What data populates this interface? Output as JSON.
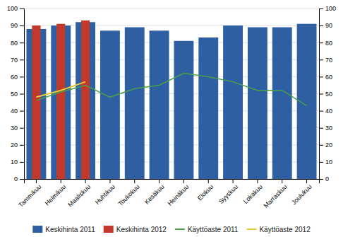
{
  "chart_data": {
    "type": "bar",
    "categories": [
      "Tammikuu",
      "Helmikuu",
      "Maaliskuu",
      "Huhtikuu",
      "Toukokuu",
      "Kesäkuu",
      "Heinäkuu",
      "Elokuu",
      "Syyskuu",
      "Lokakuu",
      "Marraskuu",
      "Joulukuu"
    ],
    "series": [
      {
        "name": "Keskihinta 2011",
        "type": "bar",
        "color": "#2E5FA3",
        "values": [
          88,
          90,
          92,
          87,
          89,
          87,
          81,
          83,
          90,
          89,
          89,
          91
        ]
      },
      {
        "name": "Keskihinta 2012",
        "type": "bar",
        "color": "#C0392B",
        "values": [
          90,
          91,
          93,
          null,
          null,
          null,
          null,
          null,
          null,
          null,
          null,
          null
        ]
      },
      {
        "name": "Käyttöaste 2011",
        "type": "line",
        "axis": "y2",
        "color": "#4AA04A",
        "values": [
          46,
          51,
          55,
          48,
          53,
          55,
          62,
          60,
          57,
          52,
          52,
          43
        ]
      },
      {
        "name": "Käyttöaste 2012",
        "type": "line",
        "axis": "y2",
        "color": "#E8C83B",
        "values": [
          48,
          52,
          57,
          null,
          null,
          null,
          null,
          null,
          null,
          null,
          null,
          null
        ]
      }
    ],
    "ylim": [
      0,
      100
    ],
    "yticks": [
      0,
      10,
      20,
      30,
      40,
      50,
      60,
      70,
      80,
      90,
      100
    ],
    "y2lim": [
      0,
      100
    ],
    "y2ticks": [
      0,
      10,
      20,
      30,
      40,
      50,
      60,
      70,
      80,
      90,
      100
    ],
    "grid": true,
    "legend": "bottom"
  }
}
